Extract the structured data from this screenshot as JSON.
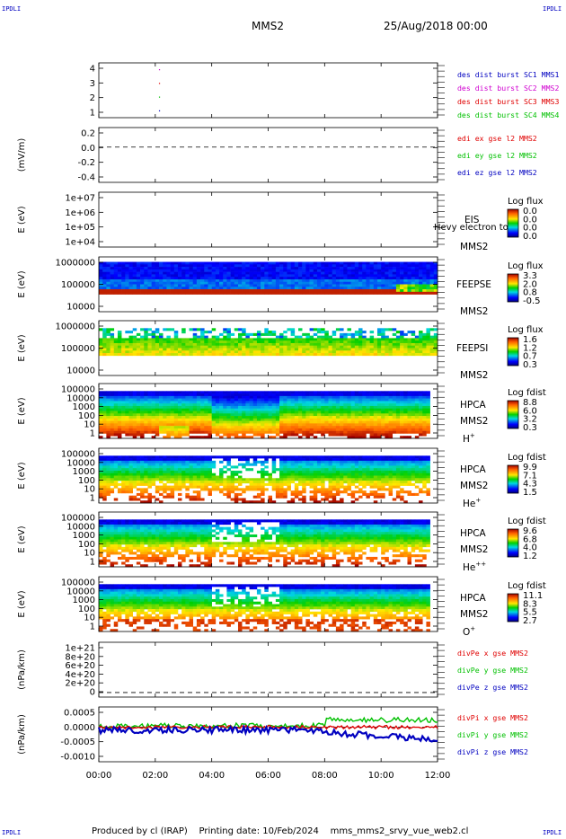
{
  "corner_labels": {
    "top_left": "IPDLI",
    "top_right": "IPDLI",
    "bottom_left": "IPDLI",
    "bottom_right": "IPDLI"
  },
  "header": {
    "title": "MMS2",
    "date": "25/Aug/2018 00:00"
  },
  "footer": {
    "produced_by": "Produced by cl (IRAP)",
    "printing_date": "Printing date: 10/Feb/2024",
    "filename": "mms_mms2_srvy_vue_web2.cl"
  },
  "colors": {
    "blue": "#0000c0",
    "magenta": "#d000d0",
    "red": "#e00000",
    "green": "#00c000",
    "orange": "#ff9a00",
    "yellow": "#ffe800",
    "cyan": "#00d8e0",
    "navy": "#000080"
  },
  "time_axis": {
    "ticks": [
      "00:00",
      "02:00",
      "04:00",
      "06:00",
      "08:00",
      "10:00",
      "12:00"
    ],
    "range_hours": [
      0,
      12
    ]
  },
  "chart_data": [
    {
      "id": "burst",
      "type": "scatter",
      "ylim": [
        0.5,
        4.5
      ],
      "ytick_labels": [
        "4",
        "3",
        "2",
        "1"
      ],
      "series": [
        {
          "name": "des dist burst SC1 MMS1",
          "color": "blue",
          "x": [
            2.15
          ],
          "y": [
            1
          ]
        },
        {
          "name": "des dist burst SC2 MMS2",
          "color": "magenta",
          "x": [
            2.15
          ],
          "y": [
            4
          ]
        },
        {
          "name": "des dist burst SC3 MMS3",
          "color": "red",
          "x": [
            2.15
          ],
          "y": [
            3
          ]
        },
        {
          "name": "des dist burst SC4 MMS4",
          "color": "green",
          "x": [
            2.15
          ],
          "y": [
            2
          ]
        }
      ]
    },
    {
      "id": "edi",
      "type": "line",
      "ylabel": "(mV/m)",
      "ylim": [
        -0.45,
        0.25
      ],
      "ytick_labels": [
        "0.2",
        "0.0",
        "-0.2",
        "-0.4"
      ],
      "series": [
        {
          "name": "edi ex gse l2 MMS2",
          "color": "red"
        },
        {
          "name": "edi ey gse l2 MMS2",
          "color": "green"
        },
        {
          "name": "edi ez gse l2 MMS2",
          "color": "blue"
        }
      ],
      "zero_line": 0.0
    },
    {
      "id": "eis",
      "type": "heatmap",
      "ylabel": "E (eV)",
      "ytick_labels": [
        "1e+07",
        "1e+06",
        "1e+05",
        "1e+04"
      ],
      "labels": [
        "EIS",
        "MMS2"
      ],
      "overlay_text": "Hevy electron to",
      "colorbar_title": "Log flux",
      "colorbar_ticks": [
        "0.0",
        "0.0",
        "0.0",
        "0.0"
      ]
    },
    {
      "id": "feepse",
      "type": "heatmap",
      "ylabel": "E (eV)",
      "ytick_labels": [
        "1000000",
        "100000",
        "10000"
      ],
      "labels": [
        "FEEPSE",
        "MMS2"
      ],
      "colorbar_title": "Log flux",
      "colorbar_ticks": [
        "3.3",
        "2.0",
        "0.8",
        "-0.5"
      ]
    },
    {
      "id": "feepsi",
      "type": "heatmap",
      "ylabel": "E (eV)",
      "ytick_labels": [
        "1000000",
        "100000",
        "10000"
      ],
      "labels": [
        "FEEPSI",
        "MMS2"
      ],
      "colorbar_title": "Log flux",
      "colorbar_ticks": [
        "1.6",
        "1.2",
        "0.7",
        "0.3"
      ]
    },
    {
      "id": "hpca_h",
      "type": "heatmap",
      "ylabel": "E (eV)",
      "ytick_labels": [
        "100000",
        "10000",
        "1000",
        "100",
        "10",
        "1"
      ],
      "labels": [
        "HPCA",
        "MMS2",
        "H"
      ],
      "species_sup": "+",
      "colorbar_title": "Log fdist",
      "colorbar_ticks": [
        "8.8",
        "6.0",
        "3.2",
        "0.3"
      ]
    },
    {
      "id": "hpca_he",
      "type": "heatmap",
      "ylabel": "E (eV)",
      "ytick_labels": [
        "100000",
        "10000",
        "1000",
        "100",
        "10",
        "1"
      ],
      "labels": [
        "HPCA",
        "MMS2",
        "He"
      ],
      "species_sup": "+",
      "colorbar_title": "Log fdist",
      "colorbar_ticks": [
        "9.9",
        "7.1",
        "4.3",
        "1.5"
      ]
    },
    {
      "id": "hpca_he2",
      "type": "heatmap",
      "ylabel": "E (eV)",
      "ytick_labels": [
        "100000",
        "10000",
        "1000",
        "100",
        "10",
        "1"
      ],
      "labels": [
        "HPCA",
        "MMS2",
        "He"
      ],
      "species_sup": "++",
      "colorbar_title": "Log fdist",
      "colorbar_ticks": [
        "9.6",
        "6.8",
        "4.0",
        "1.2"
      ]
    },
    {
      "id": "hpca_o",
      "type": "heatmap",
      "ylabel": "E (eV)",
      "ytick_labels": [
        "100000",
        "10000",
        "1000",
        "100",
        "10",
        "1"
      ],
      "labels": [
        "HPCA",
        "MMS2",
        "O"
      ],
      "species_sup": "+",
      "colorbar_title": "Log fdist",
      "colorbar_ticks": [
        "11.1",
        "8.3",
        "5.5",
        "2.7"
      ]
    },
    {
      "id": "divpe",
      "type": "line",
      "ylabel": "(nPa/km)",
      "ylim": [
        -1e+20,
        1.1e+21
      ],
      "ytick_labels": [
        "1e+21",
        "8e+20",
        "6e+20",
        "4e+20",
        "2e+20",
        "0"
      ],
      "series": [
        {
          "name": "divPe x gse MMS2",
          "color": "red"
        },
        {
          "name": "divPe y gse MMS2",
          "color": "green"
        },
        {
          "name": "divPe z gse MMS2",
          "color": "blue"
        }
      ],
      "zero_line": 0
    },
    {
      "id": "divpi",
      "type": "line",
      "ylabel": "(nPa/km)",
      "ylim": [
        -0.0012,
        0.0007
      ],
      "ytick_labels": [
        "0.0005",
        "0.0000",
        "-0.0005",
        "-0.0010"
      ],
      "series": [
        {
          "name": "divPi x gse MMS2",
          "color": "red"
        },
        {
          "name": "divPi y gse MMS2",
          "color": "green"
        },
        {
          "name": "divPi z gse MMS2",
          "color": "blue"
        }
      ],
      "zero_line": 0.0
    }
  ]
}
